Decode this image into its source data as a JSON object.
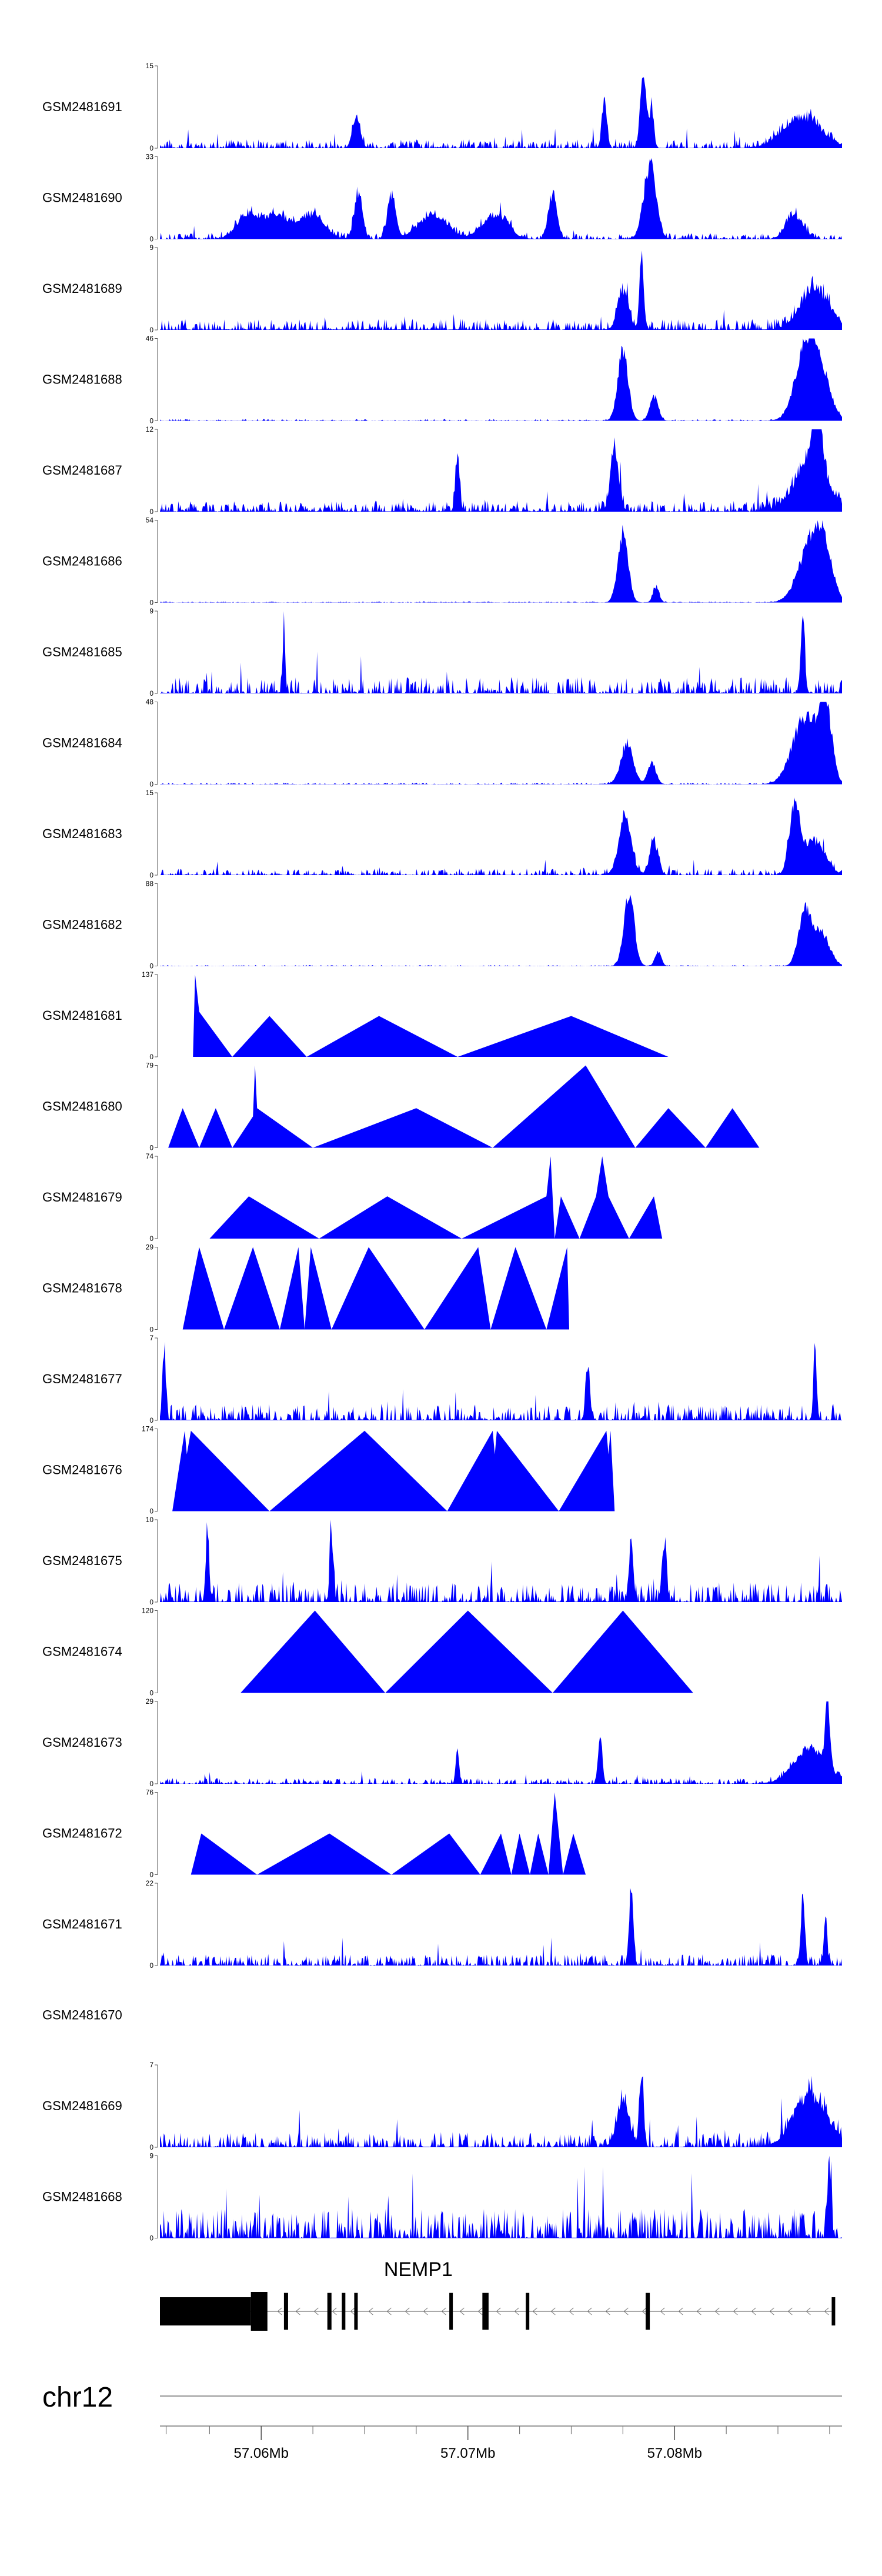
{
  "chart_data": {
    "type": "area",
    "title": "",
    "xlabel": "",
    "ylabel": "",
    "x_range": [
      57.0551,
      57.0881
    ],
    "fill_color": "#0000ff",
    "chromosome": "chr12",
    "gene": {
      "name": "NEMP1",
      "strand": "-",
      "start": 57.0551,
      "end": 57.0876,
      "exons": [
        [
          57.0551,
          57.0595
        ],
        [
          57.0595,
          57.0603
        ],
        [
          57.0611,
          57.0613
        ],
        [
          57.0632,
          57.0634
        ],
        [
          57.0639,
          57.064
        ],
        [
          57.0645,
          57.0646
        ],
        [
          57.0691,
          57.0692
        ],
        [
          57.0707,
          57.071
        ],
        [
          57.0728,
          57.0729
        ],
        [
          57.0786,
          57.0788
        ],
        [
          57.0876,
          57.0877
        ]
      ]
    },
    "axis_ticks": [
      {
        "value": 57.06,
        "label": "57.06Mb"
      },
      {
        "value": 57.07,
        "label": "57.07Mb"
      },
      {
        "value": 57.08,
        "label": "57.08Mb"
      }
    ],
    "minor_ticks": [
      57.0554,
      57.0575,
      57.06,
      57.0625,
      57.065,
      57.0675,
      57.07,
      57.0725,
      57.075,
      57.0775,
      57.08,
      57.0825,
      57.085,
      57.0875
    ],
    "series": [
      {
        "name": "GSM2481691",
        "ymax": 15,
        "profile": "dense",
        "seed": 1,
        "peaks": [
          [
            57.0646,
            6.5,
            0.00018
          ],
          [
            57.0766,
            9.5,
            0.00012
          ],
          [
            57.0785,
            15,
            0.00015
          ],
          [
            57.0789,
            8,
            0.0001
          ],
          [
            57.0862,
            6.5,
            0.0009
          ]
        ],
        "base": 1.6
      },
      {
        "name": "GSM2481690",
        "ymax": 33,
        "profile": "sparse",
        "seed": 2,
        "peaks": [
          [
            57.0593,
            11,
            0.0005
          ],
          [
            57.0607,
            11,
            0.0006
          ],
          [
            57.0624,
            11,
            0.0006
          ],
          [
            57.0647,
            20,
            0.0002
          ],
          [
            57.0663,
            20,
            0.0002
          ],
          [
            57.0683,
            11,
            0.0007
          ],
          [
            57.0713,
            11,
            0.0006
          ],
          [
            57.0741,
            20,
            0.0002
          ],
          [
            57.0788,
            33,
            0.0003
          ],
          [
            57.0858,
            11,
            0.0004
          ]
        ],
        "base": 2.5
      },
      {
        "name": "GSM2481689",
        "ymax": 9,
        "profile": "dense",
        "seed": 3,
        "peaks": [
          [
            57.0784,
            9,
            0.0001
          ],
          [
            57.0775,
            5,
            0.00025
          ],
          [
            57.0868,
            5,
            0.0007
          ]
        ],
        "base": 1.2
      },
      {
        "name": "GSM2481688",
        "ymax": 46,
        "profile": "flatpeak",
        "seed": 4,
        "peaks": [
          [
            57.0775,
            44,
            0.00025
          ],
          [
            57.079,
            16,
            0.0002
          ],
          [
            57.0863,
            40,
            0.0005
          ],
          [
            57.087,
            30,
            0.0005
          ]
        ],
        "base": 1.0
      },
      {
        "name": "GSM2481687",
        "ymax": 12,
        "profile": "dense",
        "seed": 5,
        "peaks": [
          [
            57.0695,
            9,
            0.0001
          ],
          [
            57.0771,
            9.5,
            0.0002
          ],
          [
            57.0869,
            12,
            0.0002
          ],
          [
            57.0866,
            8,
            0.0008
          ]
        ],
        "base": 1.6
      },
      {
        "name": "GSM2481686",
        "ymax": 54,
        "profile": "flatpeak",
        "seed": 6,
        "peaks": [
          [
            57.0775,
            52,
            0.00025
          ],
          [
            57.0791,
            12,
            0.00015
          ],
          [
            57.0866,
            42,
            0.0006
          ],
          [
            57.0872,
            30,
            0.0004
          ]
        ],
        "base": 0.8
      },
      {
        "name": "GSM2481685",
        "ymax": 9,
        "profile": "dense",
        "seed": 7,
        "peaks": [
          [
            57.0611,
            9,
            6e-05
          ],
          [
            57.0862,
            9,
            0.0001
          ]
        ],
        "base": 1.8
      },
      {
        "name": "GSM2481684",
        "ymax": 48,
        "profile": "flatpeak",
        "seed": 8,
        "peaks": [
          [
            57.0777,
            27,
            0.0003
          ],
          [
            57.0789,
            14,
            0.0002
          ],
          [
            57.0863,
            44,
            0.0006
          ],
          [
            57.0873,
            48,
            0.0003
          ]
        ],
        "base": 1.0
      },
      {
        "name": "GSM2481683",
        "ymax": 15,
        "profile": "dense",
        "seed": 9,
        "peaks": [
          [
            57.0776,
            12,
            0.0003
          ],
          [
            57.079,
            7,
            0.0002
          ],
          [
            57.0858,
            14,
            0.00025
          ],
          [
            57.0868,
            7,
            0.0005
          ]
        ],
        "base": 1.2
      },
      {
        "name": "GSM2481682",
        "ymax": 88,
        "profile": "flatpeak",
        "seed": 10,
        "peaks": [
          [
            57.0778,
            85,
            0.00025
          ],
          [
            57.0792,
            18,
            0.00015
          ],
          [
            57.0863,
            65,
            0.0003
          ],
          [
            57.0871,
            40,
            0.0004
          ]
        ],
        "base": 1.0
      },
      {
        "name": "GSM2481681",
        "ymax": 137,
        "profile": "triangles",
        "seed": 11,
        "points": [
          [
            57.0567,
            0
          ],
          [
            57.0568,
            137
          ],
          [
            57.057,
            75
          ],
          [
            57.0586,
            0
          ],
          [
            57.0604,
            68
          ],
          [
            57.0622,
            0
          ],
          [
            57.0657,
            68
          ],
          [
            57.0695,
            0
          ],
          [
            57.075,
            68
          ],
          [
            57.0797,
            0
          ]
        ]
      },
      {
        "name": "GSM2481680",
        "ymax": 79,
        "profile": "triangles",
        "seed": 12,
        "points": [
          [
            57.0555,
            0
          ],
          [
            57.0562,
            38
          ],
          [
            57.057,
            0
          ],
          [
            57.0578,
            38
          ],
          [
            57.0586,
            0
          ],
          [
            57.0596,
            30
          ],
          [
            57.0597,
            79
          ],
          [
            57.0598,
            38
          ],
          [
            57.0625,
            0
          ],
          [
            57.0675,
            38
          ],
          [
            57.0712,
            0
          ],
          [
            57.0757,
            79
          ],
          [
            57.0781,
            0
          ],
          [
            57.0797,
            38
          ],
          [
            57.0815,
            0
          ],
          [
            57.0828,
            38
          ],
          [
            57.0841,
            0
          ]
        ]
      },
      {
        "name": "GSM2481679",
        "ymax": 74,
        "profile": "triangles",
        "seed": 13,
        "points": [
          [
            57.0575,
            0
          ],
          [
            57.0594,
            38
          ],
          [
            57.0628,
            0
          ],
          [
            57.0661,
            38
          ],
          [
            57.0697,
            0
          ],
          [
            57.0738,
            38
          ],
          [
            57.074,
            74
          ],
          [
            57.0742,
            0
          ],
          [
            57.0745,
            38
          ],
          [
            57.0754,
            0
          ],
          [
            57.0762,
            38
          ],
          [
            57.0765,
            74
          ],
          [
            57.0768,
            38
          ],
          [
            57.0778,
            0
          ],
          [
            57.079,
            38
          ],
          [
            57.0794,
            0
          ]
        ]
      },
      {
        "name": "GSM2481678",
        "ymax": 29,
        "profile": "triangles",
        "seed": 14,
        "points": [
          [
            57.0562,
            0
          ],
          [
            57.057,
            29
          ],
          [
            57.0582,
            0
          ],
          [
            57.0596,
            29
          ],
          [
            57.0609,
            0
          ],
          [
            57.0618,
            29
          ],
          [
            57.0621,
            0
          ],
          [
            57.0624,
            29
          ],
          [
            57.0634,
            0
          ],
          [
            57.0652,
            29
          ],
          [
            57.0679,
            0
          ],
          [
            57.0705,
            29
          ],
          [
            57.0711,
            0
          ],
          [
            57.0723,
            29
          ],
          [
            57.0738,
            0
          ],
          [
            57.0748,
            29
          ],
          [
            57.0749,
            0
          ]
        ]
      },
      {
        "name": "GSM2481677",
        "ymax": 7,
        "profile": "dense",
        "seed": 15,
        "peaks": [
          [
            57.0553,
            7,
            8e-05
          ],
          [
            57.0758,
            5,
            0.0001
          ],
          [
            57.0868,
            6,
            8e-05
          ]
        ],
        "base": 1.4
      },
      {
        "name": "GSM2481676",
        "ymax": 174,
        "profile": "triangles",
        "seed": 16,
        "points": [
          [
            57.0557,
            0
          ],
          [
            57.0563,
            170
          ],
          [
            57.0564,
            120
          ],
          [
            57.0566,
            170
          ],
          [
            57.0604,
            0
          ],
          [
            57.065,
            170
          ],
          [
            57.069,
            0
          ],
          [
            57.0712,
            170
          ],
          [
            57.0713,
            120
          ],
          [
            57.0714,
            170
          ],
          [
            57.0744,
            0
          ],
          [
            57.0767,
            170
          ],
          [
            57.0768,
            120
          ],
          [
            57.0769,
            170
          ],
          [
            57.0771,
            0
          ]
        ]
      },
      {
        "name": "GSM2481675",
        "ymax": 10,
        "profile": "dense",
        "seed": 17,
        "peaks": [
          [
            57.0574,
            10,
            8e-05
          ],
          [
            57.0634,
            10,
            8e-05
          ],
          [
            57.0779,
            9,
            0.0001
          ],
          [
            57.0795,
            8,
            0.0001
          ]
        ],
        "base": 2.4
      },
      {
        "name": "GSM2481674",
        "ymax": 120,
        "profile": "triangles",
        "seed": 18,
        "points": [
          [
            57.059,
            0
          ],
          [
            57.0626,
            120
          ],
          [
            57.066,
            0
          ],
          [
            57.07,
            120
          ],
          [
            57.0741,
            0
          ],
          [
            57.0775,
            120
          ],
          [
            57.0809,
            0
          ]
        ]
      },
      {
        "name": "GSM2481673",
        "ymax": 29,
        "profile": "dense",
        "seed": 19,
        "peaks": [
          [
            57.0695,
            14,
            8e-05
          ],
          [
            57.0764,
            18,
            0.0001
          ],
          [
            57.0874,
            29,
            0.0001
          ],
          [
            57.0866,
            14,
            0.0008
          ]
        ],
        "base": 2.0
      },
      {
        "name": "GSM2481672",
        "ymax": 76,
        "profile": "triangles",
        "seed": 20,
        "points": [
          [
            57.0566,
            0
          ],
          [
            57.0571,
            38
          ],
          [
            57.0598,
            0
          ],
          [
            57.0633,
            38
          ],
          [
            57.0663,
            0
          ],
          [
            57.0691,
            38
          ],
          [
            57.0706,
            0
          ],
          [
            57.0716,
            38
          ],
          [
            57.0721,
            0
          ],
          [
            57.0725,
            38
          ],
          [
            57.073,
            0
          ],
          [
            57.0734,
            38
          ],
          [
            57.0739,
            0
          ],
          [
            57.0742,
            76
          ],
          [
            57.0746,
            0
          ],
          [
            57.0751,
            38
          ],
          [
            57.0757,
            0
          ]
        ]
      },
      {
        "name": "GSM2481671",
        "ymax": 22,
        "profile": "dense",
        "seed": 21,
        "peaks": [
          [
            57.0779,
            22,
            0.0001
          ],
          [
            57.0862,
            19,
            0.0001
          ],
          [
            57.0873,
            14,
            8e-05
          ]
        ],
        "base": 3.0
      },
      {
        "name": "GSM2481670",
        "ymax": null,
        "profile": "empty",
        "seed": 22
      },
      {
        "name": "GSM2481669",
        "ymax": 7,
        "profile": "dense",
        "seed": 23,
        "peaks": [
          [
            57.0784,
            7,
            0.0001
          ],
          [
            57.0775,
            4,
            0.0003
          ],
          [
            57.0866,
            5,
            0.0008
          ]
        ],
        "base": 1.3
      },
      {
        "name": "GSM2481668",
        "ymax": 9,
        "profile": "dense",
        "seed": 24,
        "peaks": [
          [
            57.0875,
            9,
            8e-05
          ]
        ],
        "base": 3.2
      }
    ]
  }
}
